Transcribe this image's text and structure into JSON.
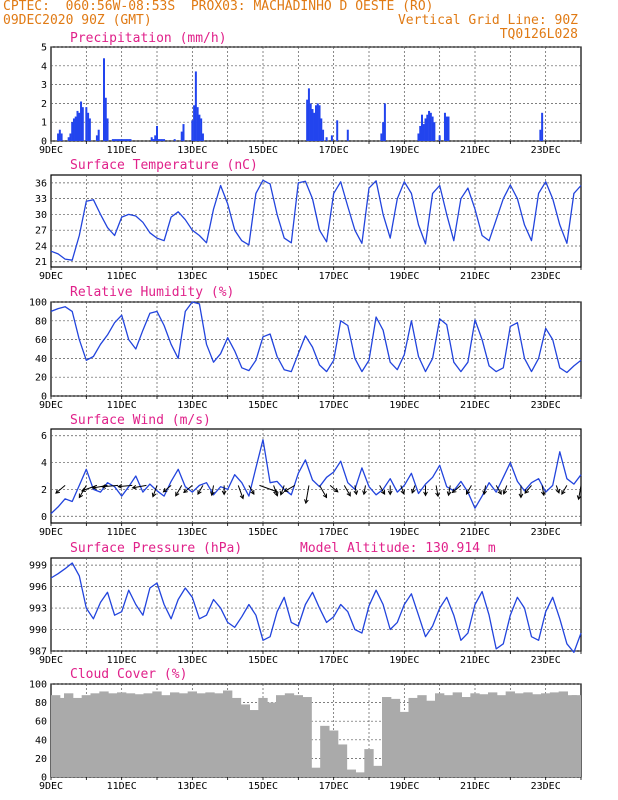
{
  "header": {
    "left1": "CPTEC:  060:56W-08:53S  PROX03: MACHADINHO D OESTE (RO)",
    "left2": "09DEC2020 90Z (GMT)",
    "right2": "Vertical Grid Line: 90Z",
    "right3": "TQ0126L028"
  },
  "x_ticks": [
    "9DEC",
    "11DEC",
    "13DEC",
    "15DEC",
    "17DEC",
    "19DEC",
    "21DEC",
    "23DEC"
  ],
  "colors": {
    "header": "#e07a14",
    "title": "#e0218a",
    "line": "#2244dd",
    "bar": "#2244ee",
    "cloud": "#aaaaaa"
  },
  "chart_data": [
    {
      "type": "bar",
      "title": "Precipitation (mm/h)",
      "xlim": [
        0,
        15
      ],
      "ylim": [
        0,
        5
      ],
      "yticks": [
        0,
        1,
        2,
        3,
        4,
        5
      ],
      "x": [
        0.2,
        0.25,
        0.3,
        0.5,
        0.55,
        0.6,
        0.65,
        0.7,
        0.75,
        0.8,
        0.85,
        0.9,
        1.0,
        1.05,
        1.1,
        1.3,
        1.35,
        1.5,
        1.55,
        1.6,
        1.75,
        1.8,
        1.85,
        1.9,
        1.95,
        2.0,
        2.05,
        2.1,
        2.15,
        2.2,
        2.25,
        2.85,
        2.9,
        2.95,
        3.0,
        3.05,
        3.1,
        3.15,
        3.2,
        3.5,
        3.7,
        3.75,
        4.0,
        4.05,
        4.1,
        4.15,
        4.2,
        4.25,
        4.3,
        7.25,
        7.3,
        7.35,
        7.4,
        7.45,
        7.5,
        7.55,
        7.6,
        7.65,
        7.7,
        7.8,
        7.95,
        8.1,
        8.4,
        9.35,
        9.4,
        9.45,
        10.4,
        10.45,
        10.5,
        10.55,
        10.6,
        10.65,
        10.7,
        10.75,
        10.8,
        10.85,
        11.0,
        11.15,
        11.2,
        11.25,
        13.85,
        13.9
      ],
      "values": [
        0.4,
        0.6,
        0.4,
        0.2,
        0.4,
        1.0,
        1.2,
        1.3,
        1.6,
        1.5,
        2.1,
        1.8,
        1.8,
        1.5,
        1.2,
        0.3,
        0.6,
        4.4,
        2.3,
        1.2,
        0.1,
        0.1,
        0.1,
        0.1,
        0.1,
        0.1,
        0.1,
        0.1,
        0.1,
        0.1,
        0.1,
        0.2,
        0.1,
        0.3,
        0.8,
        0.1,
        0.1,
        0.1,
        0.1,
        0.1,
        0.5,
        0.9,
        1.1,
        1.9,
        3.7,
        1.8,
        1.4,
        1.2,
        0.4,
        2.2,
        2.8,
        2.0,
        1.7,
        1.5,
        1.9,
        2.0,
        1.9,
        1.2,
        0.6,
        0.2,
        0.3,
        1.1,
        0.6,
        0.4,
        1.0,
        2.0,
        0.4,
        0.8,
        1.4,
        0.9,
        1.2,
        1.4,
        1.6,
        1.5,
        1.3,
        1.0,
        0.3,
        1.5,
        1.3,
        1.3,
        0.6,
        1.5
      ]
    },
    {
      "type": "line",
      "title": "Surface Temperature (nC)",
      "xlim": [
        0,
        15
      ],
      "ylim": [
        20,
        37.5
      ],
      "yticks": [
        21,
        24,
        27,
        30,
        33,
        36
      ],
      "x": [
        0,
        0.2,
        0.4,
        0.6,
        0.8,
        1.0,
        1.2,
        1.4,
        1.6,
        1.8,
        2.0,
        2.2,
        2.4,
        2.6,
        2.8,
        3.0,
        3.2,
        3.4,
        3.6,
        3.8,
        4.0,
        4.2,
        4.4,
        4.6,
        4.8,
        5.0,
        5.2,
        5.4,
        5.6,
        5.8,
        6.0,
        6.2,
        6.4,
        6.6,
        6.8,
        7.0,
        7.2,
        7.4,
        7.6,
        7.8,
        8.0,
        8.2,
        8.4,
        8.6,
        8.8,
        9.0,
        9.2,
        9.4,
        9.6,
        9.8,
        10.0,
        10.2,
        10.4,
        10.6,
        10.8,
        11.0,
        11.2,
        11.4,
        11.6,
        11.8,
        12.0,
        12.2,
        12.4,
        12.6,
        12.8,
        13.0,
        13.2,
        13.4,
        13.6,
        13.8,
        14.0,
        14.2,
        14.4,
        14.6,
        14.8,
        15.0
      ],
      "values": [
        23,
        22.5,
        21.5,
        21.3,
        26,
        32.5,
        32.8,
        30,
        27.5,
        26,
        29.5,
        30,
        29.7,
        28.5,
        26.5,
        25.5,
        25,
        29.5,
        30.5,
        29,
        27,
        26,
        24.6,
        31,
        35.5,
        32,
        27,
        25,
        24.2,
        34,
        36.5,
        35.8,
        30,
        25.5,
        24.6,
        36,
        36.3,
        33,
        27,
        24.8,
        34,
        36.2,
        31.5,
        27,
        24.5,
        35,
        36.4,
        30,
        25.5,
        33,
        36.2,
        34,
        28,
        24.4,
        34,
        35.5,
        30,
        25,
        33,
        35,
        31,
        26,
        25,
        29,
        33,
        35.6,
        33,
        28,
        25,
        34,
        36.2,
        33,
        28,
        24.5,
        34,
        35.5
      ]
    },
    {
      "type": "line",
      "title": "Relative Humidity (%)",
      "xlim": [
        0,
        15
      ],
      "ylim": [
        0,
        100
      ],
      "yticks": [
        0,
        20,
        40,
        60,
        80,
        100
      ],
      "x": [
        0,
        0.2,
        0.4,
        0.6,
        0.8,
        1.0,
        1.2,
        1.4,
        1.6,
        1.8,
        2.0,
        2.2,
        2.4,
        2.6,
        2.8,
        3.0,
        3.2,
        3.4,
        3.6,
        3.8,
        4.0,
        4.2,
        4.4,
        4.6,
        4.8,
        5.0,
        5.2,
        5.4,
        5.6,
        5.8,
        6.0,
        6.2,
        6.4,
        6.6,
        6.8,
        7.0,
        7.2,
        7.4,
        7.6,
        7.8,
        8.0,
        8.2,
        8.4,
        8.6,
        8.8,
        9.0,
        9.2,
        9.4,
        9.6,
        9.8,
        10.0,
        10.2,
        10.4,
        10.6,
        10.8,
        11.0,
        11.2,
        11.4,
        11.6,
        11.8,
        12.0,
        12.2,
        12.4,
        12.6,
        12.8,
        13.0,
        13.2,
        13.4,
        13.6,
        13.8,
        14.0,
        14.2,
        14.4,
        14.6,
        14.8,
        15.0
      ],
      "values": [
        90,
        93,
        95,
        90,
        60,
        38,
        42,
        55,
        65,
        78,
        86,
        60,
        50,
        70,
        88,
        90,
        75,
        55,
        40,
        90,
        100,
        98,
        55,
        36,
        45,
        62,
        48,
        30,
        27,
        38,
        63,
        66,
        42,
        28,
        26,
        45,
        64,
        52,
        33,
        26,
        38,
        80,
        75,
        40,
        26,
        38,
        84,
        70,
        36,
        28,
        44,
        80,
        42,
        26,
        40,
        82,
        76,
        36,
        26,
        36,
        81,
        60,
        32,
        26,
        30,
        74,
        78,
        40,
        26,
        40,
        72,
        60,
        30,
        25,
        32,
        38
      ]
    },
    {
      "type": "line",
      "title": "Surface Wind (m/s)",
      "xlim": [
        0,
        15
      ],
      "ylim": [
        -0.5,
        6.5
      ],
      "yticks": [
        0,
        2,
        4,
        6
      ],
      "x": [
        0,
        0.2,
        0.4,
        0.6,
        0.8,
        1.0,
        1.2,
        1.4,
        1.6,
        1.8,
        2.0,
        2.2,
        2.4,
        2.6,
        2.8,
        3.0,
        3.2,
        3.4,
        3.6,
        3.8,
        4.0,
        4.2,
        4.4,
        4.6,
        4.8,
        5.0,
        5.2,
        5.4,
        5.6,
        5.8,
        6.0,
        6.2,
        6.4,
        6.6,
        6.8,
        7.0,
        7.2,
        7.4,
        7.6,
        7.8,
        8.0,
        8.2,
        8.4,
        8.6,
        8.8,
        9.0,
        9.2,
        9.4,
        9.6,
        9.8,
        10.0,
        10.2,
        10.4,
        10.6,
        10.8,
        11.0,
        11.2,
        11.4,
        11.6,
        11.8,
        12.0,
        12.2,
        12.4,
        12.6,
        12.8,
        13.0,
        13.2,
        13.4,
        13.6,
        13.8,
        14.0,
        14.2,
        14.4,
        14.6,
        14.8,
        15.0
      ],
      "values": [
        0.2,
        0.7,
        1.3,
        1.1,
        2.3,
        3.5,
        2.0,
        1.8,
        2.5,
        2.2,
        1.5,
        2.2,
        3.0,
        1.8,
        2.4,
        1.9,
        1.5,
        2.6,
        3.5,
        2.2,
        1.8,
        2.3,
        2.5,
        1.6,
        2.2,
        2.0,
        3.1,
        2.5,
        1.5,
        3.6,
        5.7,
        2.5,
        2.6,
        2.0,
        1.6,
        3.2,
        4.2,
        2.7,
        2.2,
        2.9,
        3.3,
        4.1,
        2.5,
        2.0,
        3.6,
        2.2,
        1.6,
        2.0,
        2.8,
        1.8,
        2.3,
        3.2,
        1.7,
        2.4,
        2.9,
        3.8,
        2.2,
        1.9,
        2.6,
        1.8,
        0.6,
        1.5,
        2.5,
        1.8,
        2.9,
        4.0,
        2.6,
        1.9,
        2.5,
        2.8,
        1.8,
        2.3,
        4.8,
        2.8,
        2.4,
        3.1
      ],
      "arrows": {
        "x": [
          0.4,
          1.0,
          1.3,
          1.6,
          1.9,
          2.3,
          2.7,
          3.0,
          3.4,
          3.7,
          4.0,
          4.3,
          4.6,
          4.9,
          5.3,
          5.6,
          5.9,
          6.3,
          6.6,
          6.9,
          7.3,
          7.6,
          7.9,
          8.3,
          8.6,
          8.9,
          9.3,
          9.6,
          9.9,
          10.3,
          10.6,
          10.9,
          11.3,
          11.6,
          11.9,
          12.3,
          12.6,
          12.9,
          13.3,
          13.6,
          13.9,
          14.3,
          14.6,
          15.0
        ],
        "angles_deg": [
          -140,
          -120,
          -160,
          -170,
          -175,
          -175,
          -170,
          -110,
          -140,
          -120,
          -140,
          -120,
          -100,
          -90,
          -70,
          -60,
          -20,
          -70,
          -110,
          -150,
          -100,
          -60,
          -40,
          -60,
          -80,
          -100,
          -60,
          -90,
          -70,
          -110,
          -90,
          -80,
          -100,
          -140,
          -120,
          -100,
          -60,
          -110,
          -90,
          -130,
          -80,
          -70,
          -120,
          -100
        ],
        "speeds": [
          1.2,
          1.4,
          1.6,
          1.5,
          1.6,
          1.4,
          1.4,
          1.2,
          1.0,
          1.2,
          1.1,
          1.0,
          1.0,
          0.9,
          1.4,
          1.0,
          1.9,
          1.1,
          1.0,
          1.2,
          1.8,
          1.4,
          1.0,
          1.2,
          0.9,
          0.9,
          1.0,
          0.9,
          0.9,
          0.8,
          1.0,
          1.1,
          1.0,
          1.1,
          1.0,
          0.9,
          1.0,
          0.9,
          1.2,
          1.0,
          1.0,
          0.8,
          1.0,
          1.4
        ]
      }
    },
    {
      "type": "line",
      "title": "Surface Pressure (hPa)",
      "annotation": "Model Altitude: 130.914 m",
      "xlim": [
        0,
        15
      ],
      "ylim": [
        987,
        1000
      ],
      "yticks": [
        987,
        990,
        993,
        996,
        999
      ],
      "x": [
        0,
        0.2,
        0.4,
        0.6,
        0.8,
        1.0,
        1.2,
        1.4,
        1.6,
        1.8,
        2.0,
        2.2,
        2.4,
        2.6,
        2.8,
        3.0,
        3.2,
        3.4,
        3.6,
        3.8,
        4.0,
        4.2,
        4.4,
        4.6,
        4.8,
        5.0,
        5.2,
        5.4,
        5.6,
        5.8,
        6.0,
        6.2,
        6.4,
        6.6,
        6.8,
        7.0,
        7.2,
        7.4,
        7.6,
        7.8,
        8.0,
        8.2,
        8.4,
        8.6,
        8.8,
        9.0,
        9.2,
        9.4,
        9.6,
        9.8,
        10.0,
        10.2,
        10.4,
        10.6,
        10.8,
        11.0,
        11.2,
        11.4,
        11.6,
        11.8,
        12.0,
        12.2,
        12.4,
        12.6,
        12.8,
        13.0,
        13.2,
        13.4,
        13.6,
        13.8,
        14.0,
        14.2,
        14.4,
        14.6,
        14.8,
        15.0
      ],
      "values": [
        997.2,
        997.8,
        998.5,
        999.3,
        997.5,
        993.0,
        991.5,
        993.8,
        995.2,
        992.0,
        992.5,
        995.5,
        993.5,
        992.0,
        995.8,
        996.5,
        993.5,
        991.5,
        994.2,
        995.8,
        994.5,
        991.5,
        992.0,
        994.2,
        993.0,
        991.0,
        990.3,
        991.8,
        993.5,
        992.0,
        988.5,
        989.0,
        992.5,
        994.5,
        991.0,
        990.5,
        993.5,
        995.2,
        993.0,
        991.0,
        991.8,
        993.5,
        992.5,
        990.0,
        989.5,
        993.3,
        995.5,
        993.5,
        990.0,
        991.0,
        993.5,
        995.0,
        992.0,
        989.0,
        990.5,
        993.0,
        994.5,
        992.0,
        988.5,
        989.5,
        993.5,
        995.3,
        992.0,
        987.3,
        988.0,
        992.0,
        994.5,
        993.0,
        989.0,
        988.5,
        992.5,
        994.5,
        991.5,
        988.0,
        986.8,
        989.5
      ]
    },
    {
      "type": "bar",
      "title": "Cloud Cover (%)",
      "xlim": [
        0,
        15
      ],
      "ylim": [
        0,
        100
      ],
      "yticks": [
        0,
        20,
        40,
        60,
        80,
        100
      ],
      "x": [
        0,
        0.25,
        0.5,
        0.75,
        1.0,
        1.25,
        1.5,
        1.75,
        2.0,
        2.25,
        2.5,
        2.75,
        3.0,
        3.25,
        3.5,
        3.75,
        4.0,
        4.25,
        4.5,
        4.75,
        5.0,
        5.25,
        5.5,
        5.75,
        6.0,
        6.25,
        6.5,
        6.75,
        7.0,
        7.25,
        7.5,
        7.75,
        8.0,
        8.25,
        8.5,
        8.75,
        9.0,
        9.25,
        9.5,
        9.75,
        10.0,
        10.25,
        10.5,
        10.75,
        11.0,
        11.25,
        11.5,
        11.75,
        12.0,
        12.25,
        12.5,
        12.75,
        13.0,
        13.25,
        13.5,
        13.75,
        14.0,
        14.25,
        14.5,
        14.75,
        15.0
      ],
      "values": [
        88,
        85,
        90,
        85,
        88,
        90,
        92,
        90,
        91,
        90,
        89,
        90,
        92,
        88,
        91,
        90,
        92,
        90,
        91,
        90,
        93,
        85,
        78,
        72,
        85,
        80,
        88,
        90,
        88,
        86,
        10,
        55,
        50,
        35,
        8,
        5,
        30,
        12,
        86,
        84,
        70,
        85,
        88,
        82,
        90,
        88,
        91,
        86,
        90,
        89,
        91,
        88,
        92,
        90,
        91,
        89,
        90,
        91,
        92,
        88,
        88
      ]
    }
  ]
}
